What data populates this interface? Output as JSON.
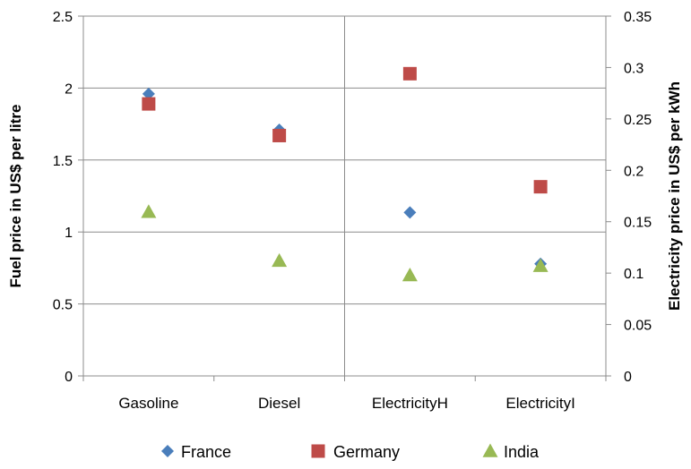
{
  "chart_data": {
    "type": "scatter",
    "categories": [
      "Gasoline",
      "Diesel",
      "ElectricityH",
      "ElectricityI"
    ],
    "y_left": {
      "label": "Fuel price in US$ per litre",
      "ylim": [
        0,
        2.5
      ],
      "ticks": [
        "0",
        "0.5",
        "1",
        "1.5",
        "2",
        "2.5"
      ]
    },
    "y_right": {
      "label": "Electricity price in US$ per kWh",
      "ylim": [
        0,
        0.35
      ],
      "ticks": [
        "0",
        "0.05",
        "0.1",
        "0.15",
        "0.2",
        "0.25",
        "0.3",
        "0.35"
      ]
    },
    "series": [
      {
        "name": "France",
        "marker": "diamond",
        "color": "#4a7ebb",
        "values": [
          1.96,
          1.71,
          0.159,
          0.109
        ],
        "axes": [
          "left",
          "left",
          "right",
          "right"
        ]
      },
      {
        "name": "Germany",
        "marker": "square",
        "color": "#be4b48",
        "values": [
          1.89,
          1.67,
          0.294,
          0.184
        ],
        "axes": [
          "left",
          "left",
          "right",
          "right"
        ]
      },
      {
        "name": "India",
        "marker": "triangle",
        "color": "#98b954",
        "values": [
          1.14,
          0.8,
          0.098,
          0.107
        ],
        "axes": [
          "left",
          "left",
          "right",
          "right"
        ]
      }
    ],
    "grid": true,
    "legend": "bottom"
  }
}
